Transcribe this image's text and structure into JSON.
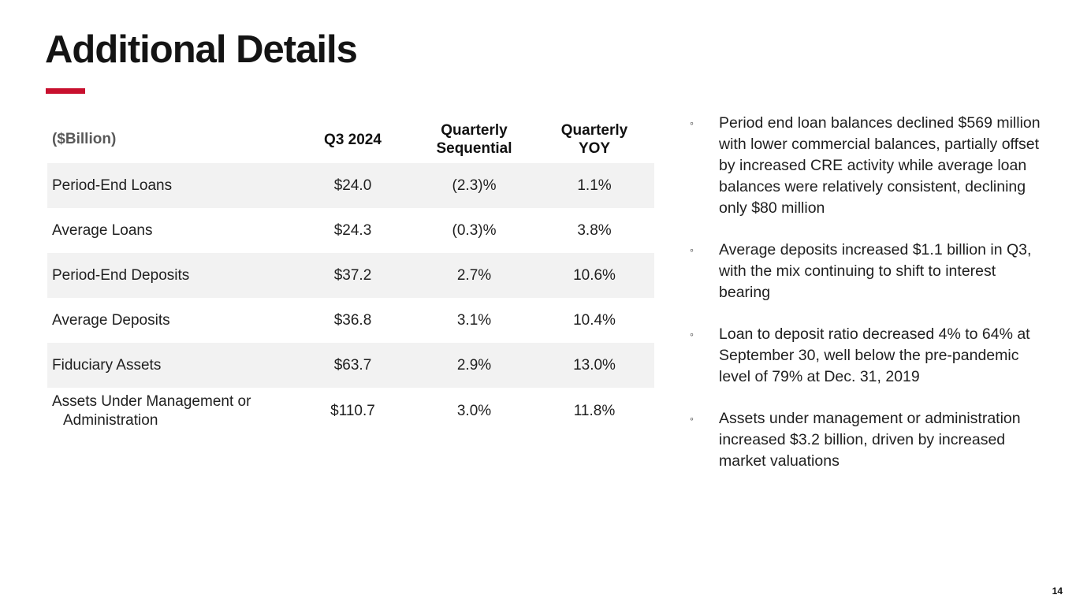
{
  "slide": {
    "title": "Additional Details",
    "page_number": "14",
    "accent_color": "#C8102E",
    "stripe_color": "#f2f2f2",
    "bullet_marker": "◦"
  },
  "table": {
    "unit_label": "($Billion)",
    "columns": [
      "Q3 2024",
      "Quarterly Sequential",
      "Quarterly YOY"
    ],
    "rows": [
      {
        "label": "Period-End Loans",
        "q3_2024": "$24.0",
        "quarterly_sequential": "(2.3)%",
        "quarterly_yoy": "1.1%"
      },
      {
        "label": "Average Loans",
        "q3_2024": "$24.3",
        "quarterly_sequential": "(0.3)%",
        "quarterly_yoy": "3.8%"
      },
      {
        "label": "Period-End Deposits",
        "q3_2024": "$37.2",
        "quarterly_sequential": "2.7%",
        "quarterly_yoy": "10.6%"
      },
      {
        "label": "Average Deposits",
        "q3_2024": "$36.8",
        "quarterly_sequential": "3.1%",
        "quarterly_yoy": "10.4%"
      },
      {
        "label": "Fiduciary Assets",
        "q3_2024": "$63.7",
        "quarterly_sequential": "2.9%",
        "quarterly_yoy": "13.0%"
      },
      {
        "label": "Assets Under Management or Administration",
        "q3_2024": "$110.7",
        "quarterly_sequential": "3.0%",
        "quarterly_yoy": "11.8%"
      }
    ]
  },
  "bullets": [
    "Period end loan balances declined $569 million with lower commercial balances, partially offset by increased CRE activity while average loan balances were relatively consistent, declining only $80 million",
    "Average deposits increased $1.1 billion in Q3, with the mix continuing to shift to interest bearing",
    "Loan to deposit ratio decreased 4% to 64% at September 30, well below the pre-pandemic level of 79% at Dec. 31, 2019",
    "Assets under management or administration increased $3.2 billion, driven by increased market valuations"
  ]
}
